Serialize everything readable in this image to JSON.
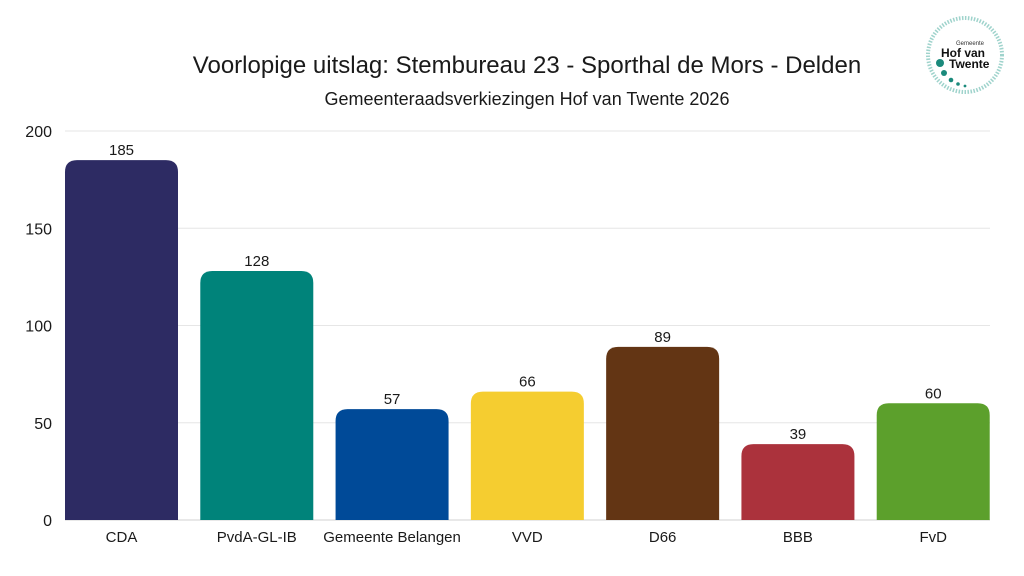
{
  "logo": {
    "small_text": "Gemeente",
    "line1": "Hof van",
    "line2": "Twente",
    "accent": "#1b8a7c"
  },
  "chart_data": {
    "type": "bar",
    "title": "Voorlopige uitslag: Stembureau 23 - Sporthal de Mors - Delden",
    "subtitle": "Gemeenteraadsverkiezingen Hof van Twente 2026",
    "xlabel": "",
    "ylabel": "",
    "categories": [
      "CDA",
      "PvdA-GL-IB",
      "Gemeente Belangen",
      "VVD",
      "D66",
      "BBB",
      "FvD"
    ],
    "values": [
      185,
      128,
      57,
      66,
      89,
      39,
      60
    ],
    "colors": [
      "#2d2b63",
      "#00837a",
      "#004a98",
      "#f5cd30",
      "#633514",
      "#ab323c",
      "#5ca02c"
    ],
    "ylim": [
      0,
      200
    ],
    "yticks": [
      0,
      50,
      100,
      150,
      200
    ],
    "grid": true,
    "data_labels": true
  }
}
